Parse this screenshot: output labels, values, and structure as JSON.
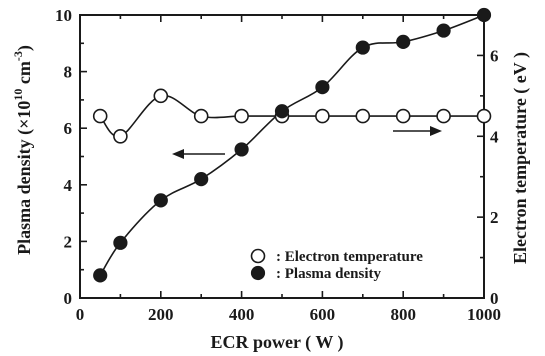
{
  "chart_data": {
    "type": "line",
    "xlabel": "ECR power ( W )",
    "ylabel_left": {
      "main": "Plasma density (",
      "times": "×10",
      "exp": "10",
      "unit": " cm",
      "unit_exp": "-3",
      "close": ")"
    },
    "ylabel_right": "Electron temperature ( eV )",
    "xlim": [
      0,
      1000
    ],
    "ylim_left": [
      0,
      10
    ],
    "ylim_right": [
      0,
      7
    ],
    "x_ticks": [
      "0",
      "200",
      "400",
      "600",
      "800",
      "1000"
    ],
    "y_left_ticks": [
      "0",
      "2",
      "4",
      "6",
      "8",
      "10"
    ],
    "y_right_ticks": [
      "0",
      "2",
      "4",
      "6"
    ],
    "series": [
      {
        "name": ": Electron temperature",
        "axis": "right",
        "marker": "open-circle",
        "x": [
          50,
          100,
          200,
          300,
          400,
          500,
          600,
          700,
          800,
          900,
          1000
        ],
        "y": [
          4.5,
          4.0,
          5.0,
          4.5,
          4.5,
          4.5,
          4.5,
          4.5,
          4.5,
          4.5,
          4.5
        ]
      },
      {
        "name": ": Plasma density",
        "axis": "left",
        "marker": "filled-circle",
        "x": [
          50,
          100,
          200,
          300,
          400,
          500,
          600,
          700,
          800,
          900,
          1000
        ],
        "y": [
          0.8,
          1.95,
          3.45,
          4.2,
          5.25,
          6.6,
          7.45,
          8.85,
          9.05,
          9.45,
          10.0
        ]
      }
    ],
    "legend_position": "bottom-right",
    "grid": false
  }
}
